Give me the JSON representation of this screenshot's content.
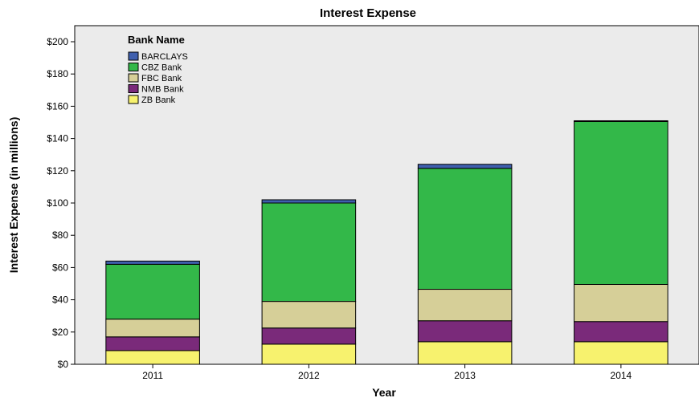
{
  "chart_data": {
    "type": "bar",
    "stacked": true,
    "title": "Interest Expense",
    "xlabel": "Year",
    "ylabel": "Interest Expense (in millions)",
    "categories": [
      "2011",
      "2012",
      "2013",
      "2014"
    ],
    "ylim": [
      0,
      200
    ],
    "yticks": [
      "$0",
      "$20",
      "$40",
      "$60",
      "$80",
      "$100",
      "$120",
      "$140",
      "$160",
      "$180",
      "$200"
    ],
    "grid": false,
    "legend_title": "Bank Name",
    "legend_position": "top-left",
    "series": [
      {
        "name": "ZB Bank",
        "color": "#f7f26e",
        "values": [
          8.5,
          12.5,
          14,
          14
        ]
      },
      {
        "name": "NMB Bank",
        "color": "#7a2a7a",
        "values": [
          8.5,
          10,
          13,
          12.5
        ]
      },
      {
        "name": "FBC Bank",
        "color": "#d6cf98",
        "values": [
          11,
          16.5,
          19.5,
          23
        ]
      },
      {
        "name": "CBZ Bank",
        "color": "#33b849",
        "values": [
          34,
          61,
          75,
          101
        ]
      },
      {
        "name": "BARCLAYS",
        "color": "#3f5fae",
        "values": [
          2,
          2,
          2.5,
          0.5
        ]
      }
    ],
    "legend_order": [
      "BARCLAYS",
      "CBZ Bank",
      "FBC Bank",
      "NMB Bank",
      "ZB Bank"
    ]
  }
}
